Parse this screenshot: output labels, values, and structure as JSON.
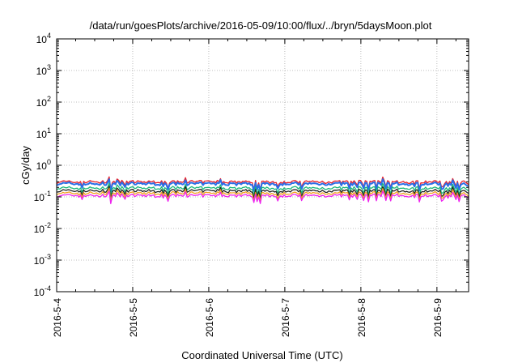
{
  "chart_data": {
    "type": "line",
    "title": "/data/run/goesPlots/archive/2016-05-09/10:00/flux/../bryn/5daysMoon.plot",
    "xlabel": "Coordinated Universal Time (UTC)",
    "ylabel": "cGy/day",
    "yscale": "log",
    "ylim": [
      0.0001,
      10000
    ],
    "xlim": [
      "2016-05-04T00:00",
      "2016-05-09T10:00"
    ],
    "x_ticks": [
      "2016-5-4",
      "2016-5-5",
      "2016-5-6",
      "2016-5-7",
      "2016-5-8",
      "2016-5-9"
    ],
    "y_ticks": [
      {
        "base": "10",
        "exp": "-4",
        "value": 0.0001
      },
      {
        "base": "10",
        "exp": "-3",
        "value": 0.001
      },
      {
        "base": "10",
        "exp": "-2",
        "value": 0.01
      },
      {
        "base": "10",
        "exp": "-1",
        "value": 0.1
      },
      {
        "base": "10",
        "exp": "0",
        "value": 1
      },
      {
        "base": "10",
        "exp": "1",
        "value": 10
      },
      {
        "base": "10",
        "exp": "2",
        "value": 100
      },
      {
        "base": "10",
        "exp": "3",
        "value": 1000
      },
      {
        "base": "10",
        "exp": "4",
        "value": 10000
      }
    ],
    "grid": true,
    "series": [
      {
        "color": "#e8202a",
        "typical_value": 0.3
      },
      {
        "color": "#2a6fe8",
        "typical_value": 0.26
      },
      {
        "color": "#1ab87a",
        "typical_value": 0.19
      },
      {
        "color": "#222222",
        "typical_value": 0.155
      },
      {
        "color": "#f0a020",
        "typical_value": 0.13
      },
      {
        "color": "#ee22ee",
        "typical_value": 0.11
      }
    ]
  }
}
